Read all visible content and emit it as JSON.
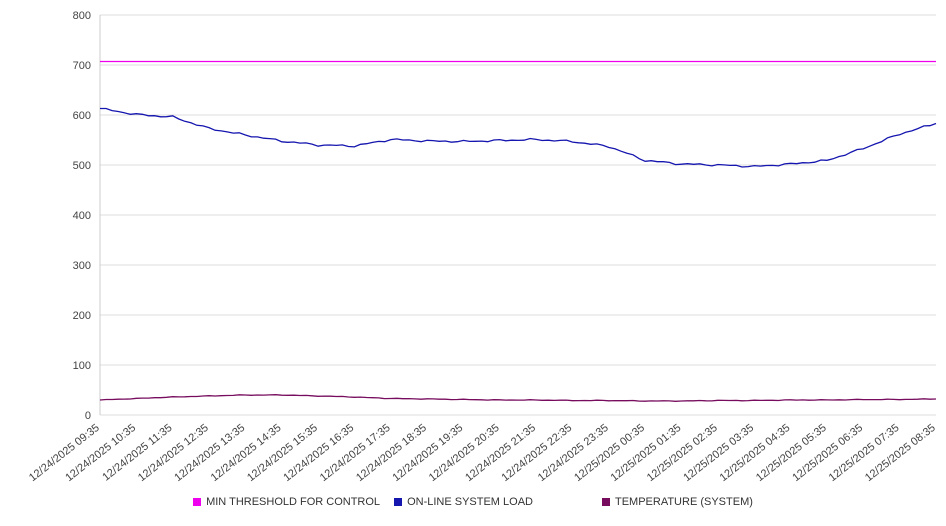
{
  "chart_data": {
    "type": "line",
    "x": [
      "12/24/2025 09:35",
      "12/24/2025 10:35",
      "12/24/2025 11:35",
      "12/24/2025 12:35",
      "12/24/2025 13:35",
      "12/24/2025 14:35",
      "12/24/2025 15:35",
      "12/24/2025 16:35",
      "12/24/2025 17:35",
      "12/24/2025 18:35",
      "12/24/2025 19:35",
      "12/24/2025 20:35",
      "12/24/2025 21:35",
      "12/24/2025 22:35",
      "12/24/2025 23:35",
      "12/25/2025 00:35",
      "12/25/2025 01:35",
      "12/25/2025 02:35",
      "12/25/2025 03:35",
      "12/25/2025 04:35",
      "12/25/2025 05:35",
      "12/25/2025 06:35",
      "12/25/2025 07:35",
      "12/25/2025 08:35"
    ],
    "series": [
      {
        "name": "MIN THRESHOLD FOR CONTROL",
        "color": "#EE00EE",
        "noise": 0,
        "values": [
          707,
          707,
          707,
          707,
          707,
          707,
          707,
          707,
          707,
          707,
          707,
          707,
          707,
          707,
          707,
          707,
          707,
          707,
          707,
          707,
          707,
          707,
          707,
          707
        ]
      },
      {
        "name": "ON-LINE SYSTEM LOAD",
        "color": "#1515AF",
        "noise": 2.4,
        "values": [
          613,
          601,
          596,
          573,
          560,
          548,
          540,
          538,
          551,
          548,
          547,
          549,
          551,
          547,
          537,
          509,
          502,
          500,
          497,
          502,
          509,
          533,
          562,
          583
        ]
      },
      {
        "name": "TEMPERATURE (SYSTEM)",
        "color": "#770C5E",
        "noise": 0.7,
        "values": [
          30,
          33,
          36,
          38,
          40,
          40,
          38,
          36,
          33,
          32,
          31,
          30,
          30,
          29,
          29,
          28,
          28,
          29,
          29,
          30,
          30,
          31,
          31,
          32
        ]
      }
    ],
    "title": "",
    "xlabel": "",
    "ylabel": "",
    "ylim": [
      0,
      800
    ],
    "ytick_step": 100,
    "yticks": [
      "0",
      "100",
      "200",
      "300",
      "400",
      "500",
      "600",
      "700",
      "800"
    ],
    "grid": true,
    "legend_position": "bottom"
  },
  "colors": {
    "gridline": "#dddddd",
    "axis": "#cccccc",
    "tick_text": "#444444",
    "legend_text": "#333333"
  }
}
